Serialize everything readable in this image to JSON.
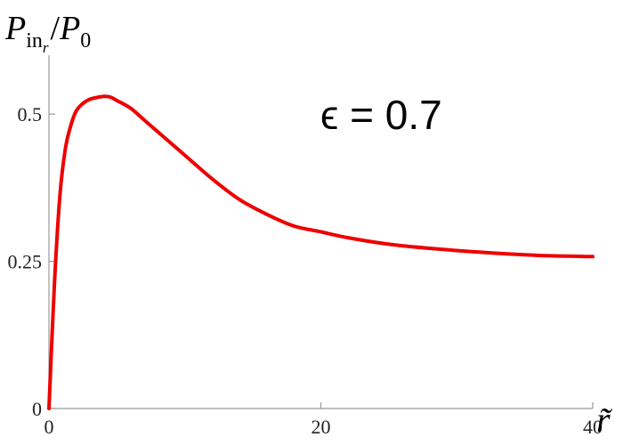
{
  "chart_data": {
    "type": "line",
    "ylabel": {
      "base": "P",
      "sub": "in",
      "subsub": "r",
      "sep": "/",
      "base2": "P",
      "sub2": "0"
    },
    "xlabel": "r̃",
    "annotation": "ϵ = 0.7",
    "xlim": [
      0,
      40
    ],
    "ylim": [
      0,
      0.6
    ],
    "xticks": [
      {
        "value": 0,
        "label": "0"
      },
      {
        "value": 20,
        "label": "20"
      },
      {
        "value": 40,
        "label": "40"
      }
    ],
    "yticks": [
      {
        "value": 0,
        "label": "0"
      },
      {
        "value": 0.25,
        "label": "0.25"
      },
      {
        "value": 0.5,
        "label": "0.5"
      }
    ],
    "grid": false,
    "series": [
      {
        "color": "#ee0000",
        "x": [
          0,
          0.4,
          0.8,
          1.2,
          1.6,
          2.0,
          2.5,
          3.0,
          3.5,
          4.0,
          4.5,
          5.0,
          6.0,
          7.0,
          8.0,
          10.0,
          12.0,
          14.0,
          16.0,
          18.0,
          20.0,
          22.0,
          25.0,
          28.0,
          32.0,
          36.0,
          40.0
        ],
        "y": [
          0,
          0.21,
          0.36,
          0.44,
          0.48,
          0.505,
          0.518,
          0.525,
          0.528,
          0.53,
          0.529,
          0.523,
          0.51,
          0.49,
          0.47,
          0.43,
          0.39,
          0.355,
          0.33,
          0.31,
          0.3,
          0.29,
          0.279,
          0.272,
          0.265,
          0.26,
          0.258
        ]
      }
    ]
  }
}
